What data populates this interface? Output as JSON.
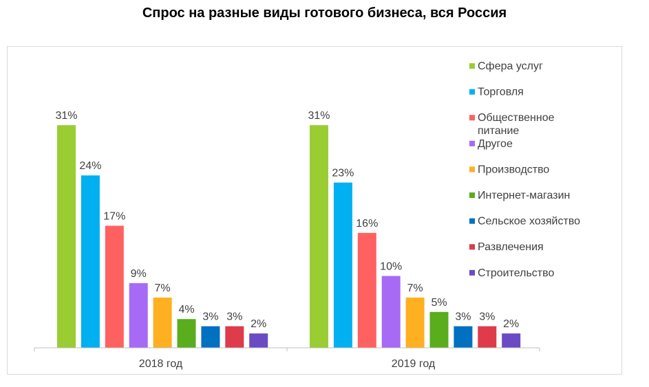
{
  "title": "Спрос на разные виды готового бизнеса, вся Россия",
  "chart_data": {
    "type": "bar",
    "title": "Спрос на разные виды готового бизнеса, вся Россия",
    "categories": [
      "2018 год",
      "2019 год"
    ],
    "value_suffix": "%",
    "ylim": [
      0,
      35
    ],
    "grid": false,
    "legend_position": "right",
    "series": [
      {
        "name": "Сфера услуг",
        "name_lines": [
          "Сфера услуг"
        ],
        "color": "#9acd32",
        "values": [
          31,
          31
        ]
      },
      {
        "name": "Торговля",
        "name_lines": [
          "Торговля"
        ],
        "color": "#00b0f0",
        "values": [
          24,
          23
        ]
      },
      {
        "name": "Общественное питание",
        "name_lines": [
          "Общественное",
          "питание"
        ],
        "color": "#ff6161",
        "values": [
          17,
          16
        ]
      },
      {
        "name": "Другое",
        "name_lines": [
          "Другое"
        ],
        "color": "#a66af5",
        "values": [
          9,
          10
        ]
      },
      {
        "name": "Производство",
        "name_lines": [
          "Производство"
        ],
        "color": "#ffb020",
        "values": [
          7,
          7
        ]
      },
      {
        "name": "Интернет-магазин",
        "name_lines": [
          "Интернет-магазин"
        ],
        "color": "#5aad1c",
        "values": [
          4,
          5
        ]
      },
      {
        "name": "Сельское хозяйство",
        "name_lines": [
          "Сельское хозяйство"
        ],
        "color": "#0070c0",
        "values": [
          3,
          3
        ]
      },
      {
        "name": "Развлечения",
        "name_lines": [
          "Развлечения"
        ],
        "color": "#de3b4b",
        "values": [
          3,
          3
        ]
      },
      {
        "name": "Строительство",
        "name_lines": [
          "Строительство"
        ],
        "color": "#6a4bc4",
        "values": [
          2,
          2
        ]
      }
    ]
  }
}
